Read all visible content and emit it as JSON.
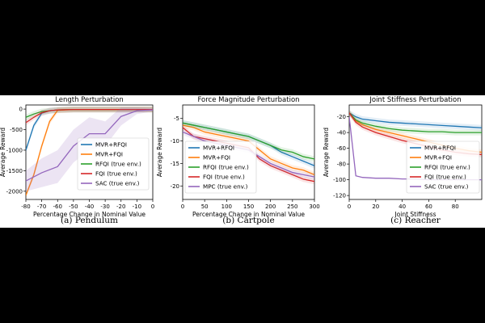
{
  "chart_data": [
    {
      "type": "line",
      "title": "Length Perturbation",
      "xlabel": "Percentage Change in Nominal Value",
      "ylabel": "Average Reward",
      "xlim": [
        -80,
        0
      ],
      "ylim": [
        -2200,
        100
      ],
      "xticks": [
        -80,
        -70,
        -60,
        -50,
        -40,
        -30,
        -20,
        -10,
        0
      ],
      "yticks": [
        0,
        -500,
        -1000,
        -1500,
        -2000
      ],
      "caption": "(a) Pendulum",
      "series": [
        {
          "name": "MVR+RFQI",
          "color": "#1f77b4",
          "x": [
            -80,
            -75,
            -70,
            -65,
            -60,
            -50,
            -40,
            -30,
            -20,
            -10,
            0
          ],
          "y": [
            -1000,
            -400,
            -100,
            -40,
            -20,
            -10,
            -10,
            -10,
            -10,
            -10,
            -10
          ]
        },
        {
          "name": "MVR+FQI",
          "color": "#ff7f0e",
          "x": [
            -80,
            -75,
            -70,
            -65,
            -60,
            -50,
            -40,
            -30,
            -20,
            -10,
            0
          ],
          "y": [
            -2100,
            -1600,
            -900,
            -300,
            -30,
            -10,
            -10,
            -10,
            -10,
            -10,
            -10
          ]
        },
        {
          "name": "RFQI (true env.)",
          "color": "#2ca02c",
          "x": [
            -80,
            -75,
            -70,
            -65,
            -60,
            -50,
            -40,
            -30,
            -20,
            -10,
            0
          ],
          "y": [
            -200,
            -120,
            -60,
            -40,
            -20,
            -10,
            -10,
            -10,
            -10,
            -10,
            -10
          ]
        },
        {
          "name": "FQI (true env.)",
          "color": "#d62728",
          "x": [
            -80,
            -75,
            -70,
            -65,
            -60,
            -50,
            -40,
            -30,
            -20,
            -10,
            0
          ],
          "y": [
            -330,
            -200,
            -90,
            -40,
            -20,
            -10,
            -10,
            -10,
            -10,
            -10,
            -10
          ]
        },
        {
          "name": "SAC (true env.)",
          "color": "#9467bd",
          "x": [
            -80,
            -70,
            -60,
            -50,
            -40,
            -30,
            -20,
            -10,
            0
          ],
          "y": [
            -1750,
            -1550,
            -1400,
            -900,
            -600,
            -600,
            -180,
            -40,
            -20
          ],
          "band": [
            -2000,
            -1900,
            -1800,
            -1300,
            -1000,
            -900,
            -400,
            -120,
            -60
          ]
        }
      ]
    },
    {
      "type": "line",
      "title": "Force Magnitude Perturbation",
      "xlabel": "Percentage Change in Nominal Value",
      "ylabel": "Average Reward",
      "xlim": [
        0,
        300
      ],
      "ylim": [
        -23,
        -2
      ],
      "xticks": [
        0,
        50,
        100,
        150,
        200,
        250,
        300
      ],
      "yticks": [
        -5,
        -10,
        -15,
        -20
      ],
      "caption": "(b) Cartpole",
      "series": [
        {
          "name": "MVR+RFQI",
          "color": "#1f77b4",
          "x": [
            0,
            25,
            50,
            75,
            100,
            125,
            150,
            175,
            200,
            225,
            250,
            275,
            300
          ],
          "y": [
            -6,
            -6.5,
            -7,
            -7.5,
            -8,
            -8.5,
            -9,
            -10,
            -11,
            -12.5,
            -13.5,
            -14.5,
            -15.5
          ]
        },
        {
          "name": "MVR+FQI",
          "color": "#ff7f0e",
          "x": [
            0,
            25,
            50,
            75,
            100,
            125,
            150,
            175,
            200,
            225,
            250,
            275,
            300
          ],
          "y": [
            -6.5,
            -7,
            -8,
            -8.5,
            -9,
            -9.5,
            -10,
            -12,
            -14,
            -15,
            -16,
            -16.5,
            -17.5
          ]
        },
        {
          "name": "RFQI (true env.)",
          "color": "#2ca02c",
          "x": [
            0,
            25,
            50,
            75,
            100,
            125,
            150,
            175,
            200,
            225,
            250,
            275,
            300
          ],
          "y": [
            -6,
            -6.5,
            -7,
            -7.5,
            -8,
            -8.5,
            -9,
            -10,
            -11,
            -12,
            -12.5,
            -13.5,
            -14
          ]
        },
        {
          "name": "FQI (true env.)",
          "color": "#d62728",
          "x": [
            0,
            25,
            50,
            75,
            100,
            125,
            150,
            175,
            200,
            225,
            250,
            275,
            300
          ],
          "y": [
            -7,
            -9,
            -9.5,
            -10,
            -10.5,
            -11,
            -11.5,
            -14,
            -15.5,
            -16.5,
            -17.5,
            -18.5,
            -19
          ]
        },
        {
          "name": "MPC (true env.)",
          "color": "#9467bd",
          "x": [
            0,
            25,
            50,
            75,
            100,
            125,
            150,
            175,
            200,
            225,
            250,
            275,
            300
          ],
          "y": [
            -8,
            -9,
            -10,
            -10.5,
            -11,
            -11.5,
            -12,
            -13.5,
            -15,
            -16,
            -17,
            -17.5,
            -18
          ]
        }
      ]
    },
    {
      "type": "line",
      "title": "Joint Stiffness Perturbation",
      "xlabel": "Joint Stiffness",
      "ylabel": "Average Reward",
      "xlim": [
        0,
        100
      ],
      "ylim": [
        -125,
        -5
      ],
      "xticks": [
        0,
        20,
        40,
        60,
        80
      ],
      "yticks": [
        -20,
        -40,
        -60,
        -80,
        -100,
        -120
      ],
      "caption": "(c) Reacher",
      "series": [
        {
          "name": "MVR+RFQI",
          "color": "#1f77b4",
          "x": [
            0,
            5,
            10,
            20,
            30,
            40,
            50,
            60,
            70,
            80,
            90,
            100
          ],
          "y": [
            -15,
            -20,
            -23,
            -25,
            -27,
            -28,
            -29,
            -30,
            -31,
            -32,
            -33,
            -34
          ]
        },
        {
          "name": "MVR+FQI",
          "color": "#ff7f0e",
          "x": [
            0,
            5,
            10,
            20,
            30,
            40,
            50,
            60,
            70,
            80,
            90,
            100
          ],
          "y": [
            -15,
            -25,
            -30,
            -36,
            -40,
            -44,
            -48,
            -52,
            -56,
            -60,
            -63,
            -65
          ]
        },
        {
          "name": "RFQI (true env.)",
          "color": "#2ca02c",
          "x": [
            0,
            5,
            10,
            20,
            30,
            40,
            50,
            60,
            70,
            80,
            90,
            100
          ],
          "y": [
            -15,
            -24,
            -28,
            -32,
            -35,
            -37,
            -38,
            -39,
            -39,
            -40,
            -40,
            -40
          ]
        },
        {
          "name": "FQI (true env.)",
          "color": "#d62728",
          "x": [
            0,
            5,
            10,
            20,
            30,
            40,
            50,
            60,
            70,
            80,
            90,
            100
          ],
          "y": [
            -15,
            -27,
            -33,
            -40,
            -45,
            -50,
            -54,
            -58,
            -62,
            -65,
            -67,
            -68
          ]
        },
        {
          "name": "SAC (true env.)",
          "color": "#9467bd",
          "x": [
            0,
            5,
            10,
            20,
            30,
            40,
            50,
            60,
            70,
            80,
            90,
            100
          ],
          "y": [
            -20,
            -95,
            -97,
            -98,
            -98,
            -99,
            -99,
            -100,
            -100,
            -100,
            -100,
            -100
          ],
          "band": [
            -10,
            -90,
            -90,
            -91,
            -92,
            -92,
            -93,
            -93,
            -94,
            -94,
            -95,
            -95
          ]
        }
      ]
    }
  ]
}
